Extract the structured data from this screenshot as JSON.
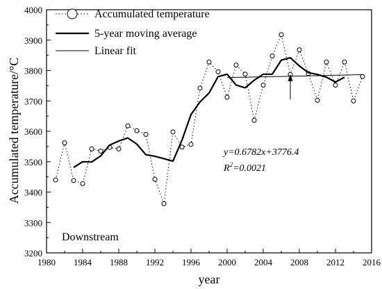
{
  "chart_data": {
    "type": "line",
    "xlabel": "year",
    "ylabel": "Accumulated temperature/°C",
    "xlim": [
      1980,
      2016
    ],
    "ylim": [
      3200,
      4000
    ],
    "xticks": [
      "1980",
      "1984",
      "1988",
      "1992",
      "1996",
      "2000",
      "2004",
      "2008",
      "2012",
      "2016"
    ],
    "yticks": [
      "3200",
      "3300",
      "3400",
      "3500",
      "3600",
      "3700",
      "3800",
      "3900",
      "4000"
    ],
    "legend_position": "top-left",
    "grid": false,
    "series": [
      {
        "name": "Accumulated temperature",
        "style": "dotted-circles",
        "x": [
          1981,
          1982,
          1983,
          1984,
          1985,
          1986,
          1987,
          1988,
          1989,
          1990,
          1991,
          1992,
          1993,
          1994,
          1995,
          1996,
          1997,
          1998,
          1999,
          2000,
          2001,
          2002,
          2003,
          2004,
          2005,
          2006,
          2007,
          2008,
          2009,
          2010,
          2011,
          2012,
          2013,
          2014,
          2015
        ],
        "y": [
          3440,
          3562,
          3438,
          3428,
          3542,
          3535,
          3547,
          3542,
          3618,
          3602,
          3590,
          3442,
          3362,
          3598,
          3548,
          3557,
          3742,
          3828,
          3796,
          3712,
          3818,
          3788,
          3636,
          3752,
          3848,
          3918,
          3787,
          3868,
          3790,
          3702,
          3828,
          3752,
          3828,
          3700,
          3780
        ]
      },
      {
        "name": "5-year moving average",
        "style": "thick-line",
        "x": [
          1983,
          1984,
          1985,
          1986,
          1987,
          1988,
          1989,
          1990,
          1991,
          1992,
          1993,
          1994,
          1995,
          1996,
          1997,
          1998,
          1999,
          2000,
          2001,
          2002,
          2003,
          2004,
          2005,
          2006,
          2007,
          2008,
          2009,
          2010,
          2011,
          2012,
          2013
        ],
        "y": [
          3481,
          3500,
          3499,
          3519,
          3555,
          3568,
          3578,
          3558,
          3523,
          3518,
          3510,
          3502,
          3571,
          3655,
          3697,
          3726,
          3780,
          3788,
          3752,
          3743,
          3768,
          3788,
          3788,
          3834,
          3842,
          3815,
          3793,
          3787,
          3778,
          3762,
          3778
        ]
      },
      {
        "name": "Linear fit",
        "style": "thin-line",
        "x": [
          2000,
          2015
        ],
        "y": [
          3776.4,
          3786.6
        ]
      }
    ],
    "annotations": {
      "equation": "y=0.6782x+3776.4",
      "r2_prefix": "R",
      "r2_sup": "2",
      "r2_value": "=0.0021",
      "arrow_from": [
        2007,
        3705
      ],
      "arrow_to": [
        2007,
        3788
      ]
    },
    "region_label": "Downstream"
  }
}
